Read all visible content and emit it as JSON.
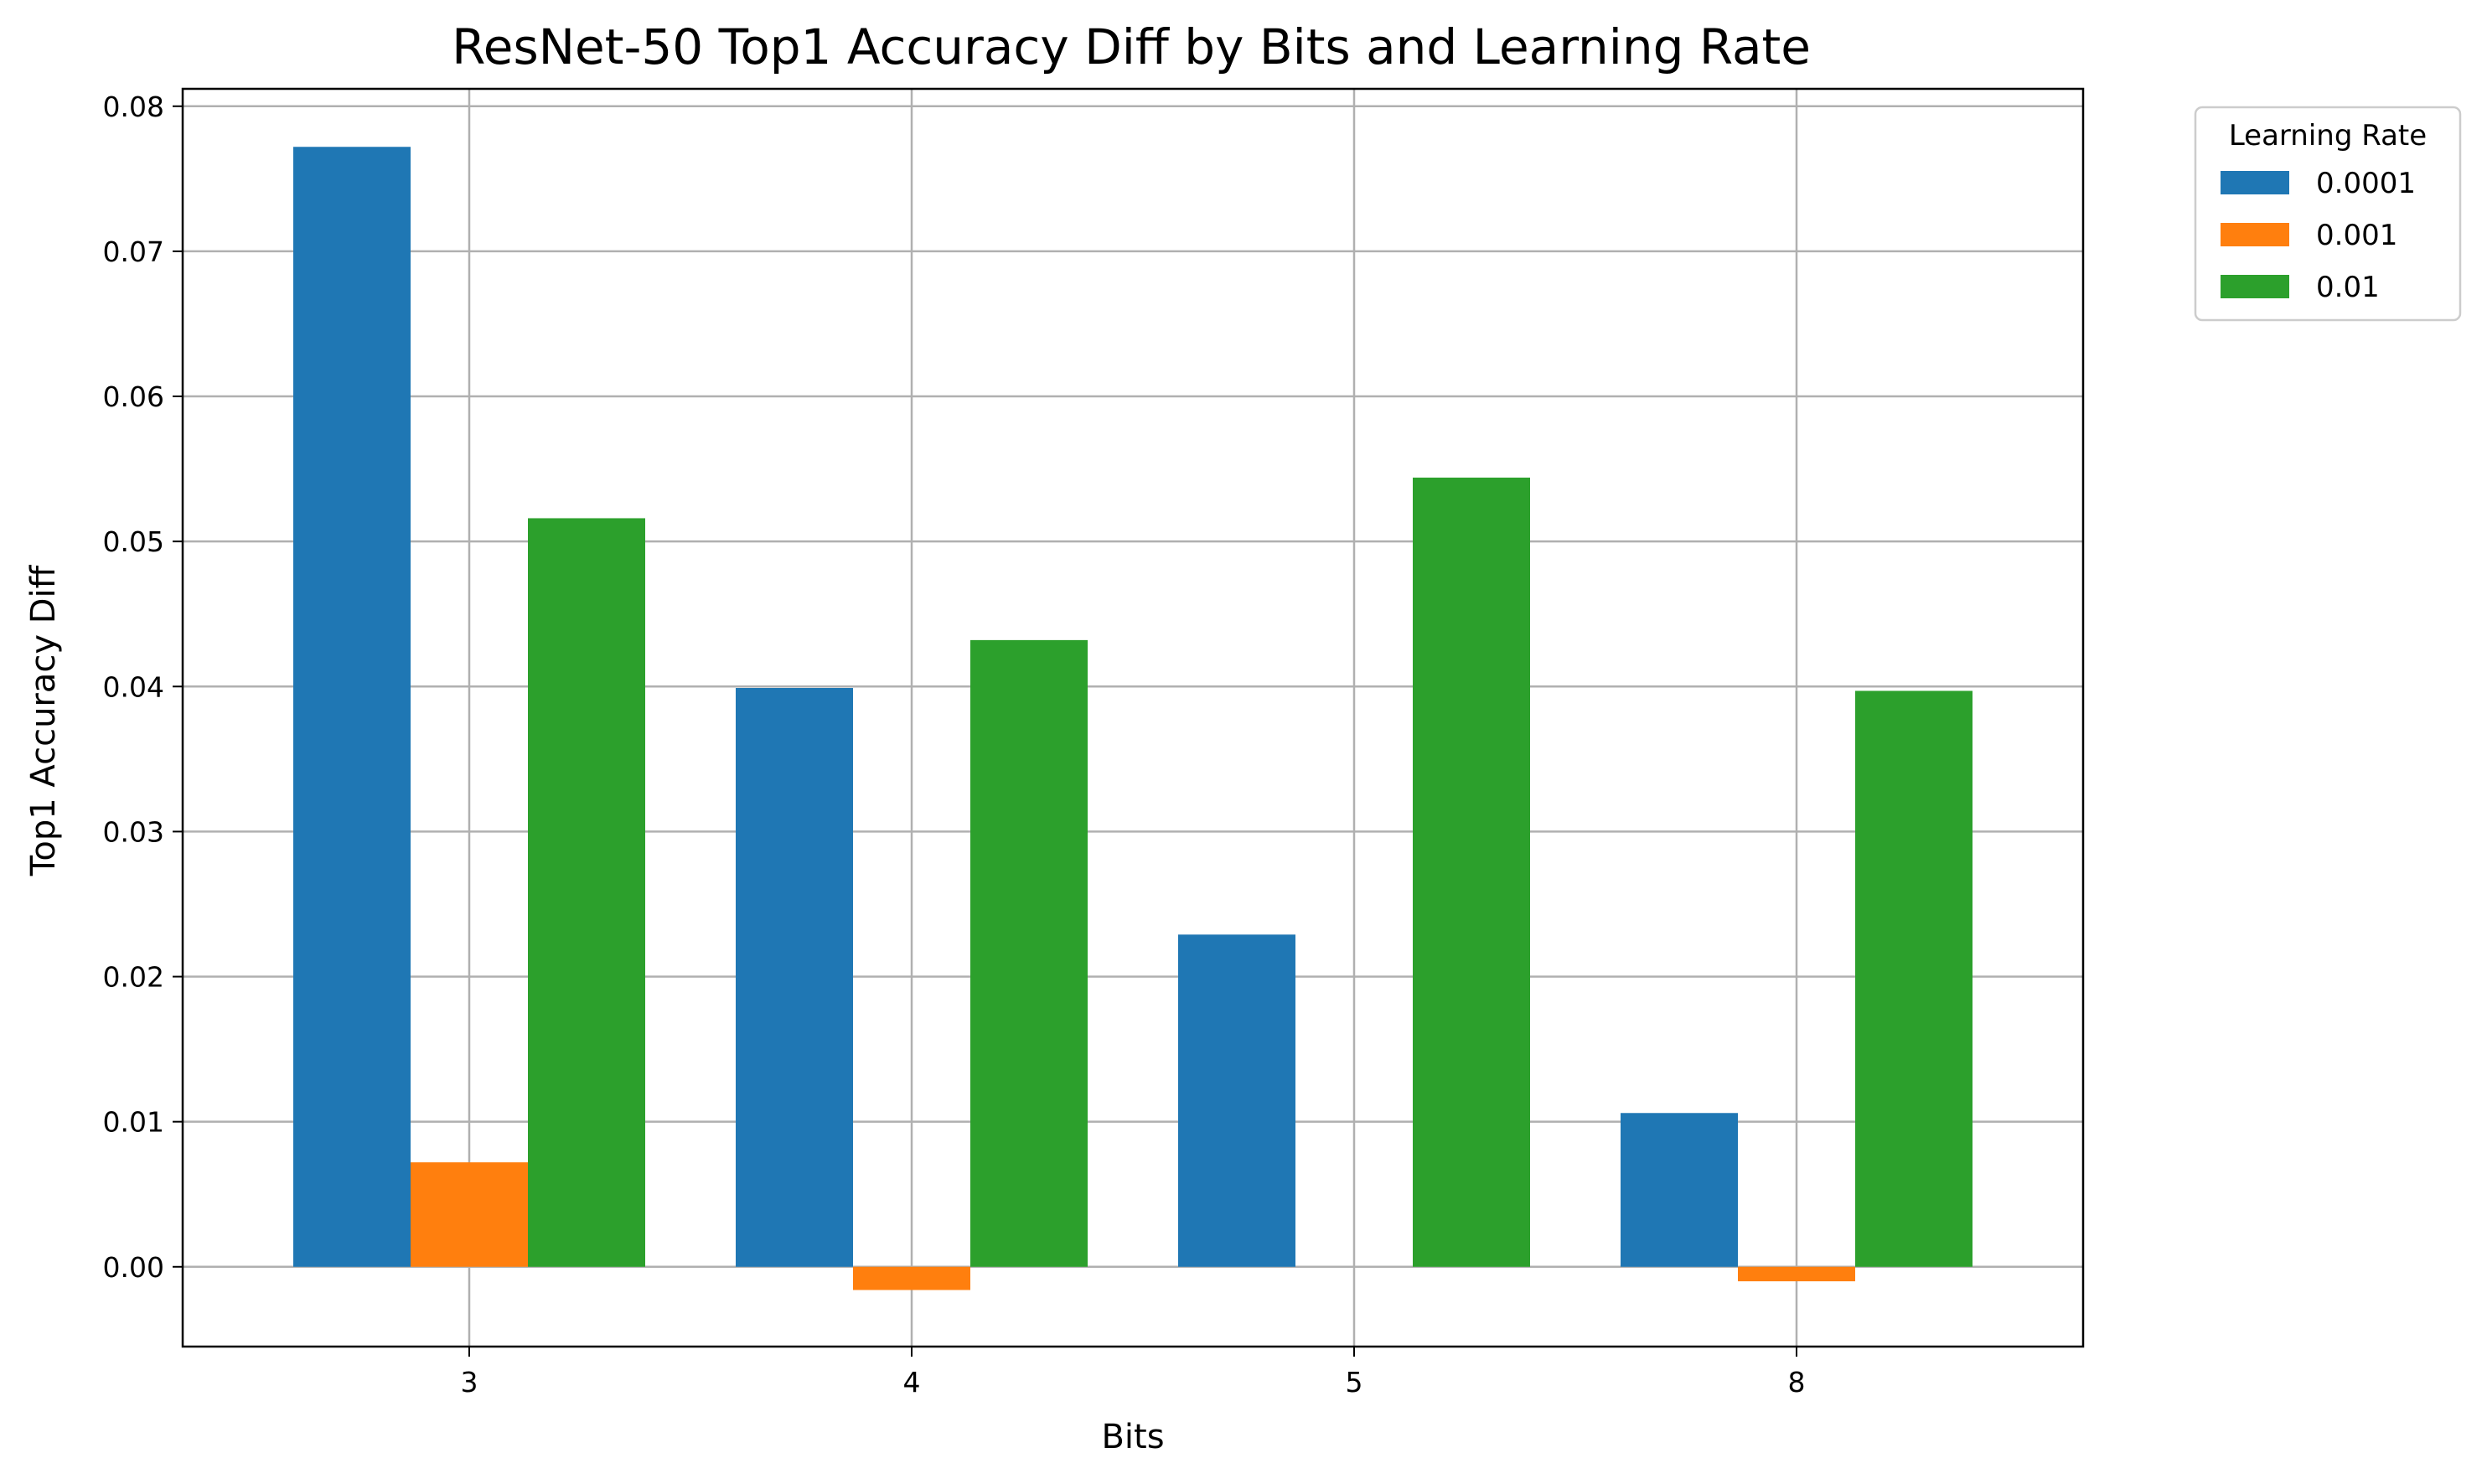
{
  "chart_data": {
    "type": "bar",
    "title": "ResNet-50 Top1 Accuracy Diff by Bits and Learning Rate",
    "xlabel": "Bits",
    "ylabel": "Top1 Accuracy Diff",
    "categories": [
      "3",
      "4",
      "5",
      "8"
    ],
    "series": [
      {
        "name": "0.0001",
        "color": "#1f77b4",
        "values": [
          0.0772,
          0.0399,
          0.0229,
          0.0106
        ]
      },
      {
        "name": "0.001",
        "color": "#ff7f0e",
        "values": [
          0.0072,
          -0.0016,
          0.0,
          -0.001
        ]
      },
      {
        "name": "0.01",
        "color": "#2ca02c",
        "values": [
          0.0516,
          0.0432,
          0.0544,
          0.0397
        ]
      }
    ],
    "ylim": [
      -0.0055,
      0.0812
    ],
    "yticks": [
      0.0,
      0.01,
      0.02,
      0.03,
      0.04,
      0.05,
      0.06,
      0.07,
      0.08
    ],
    "ytick_labels": [
      "0.00",
      "0.01",
      "0.02",
      "0.03",
      "0.04",
      "0.05",
      "0.06",
      "0.07",
      "0.08"
    ],
    "grid": true,
    "legend": {
      "title": "Learning Rate",
      "placement": "outside-top-right"
    }
  }
}
